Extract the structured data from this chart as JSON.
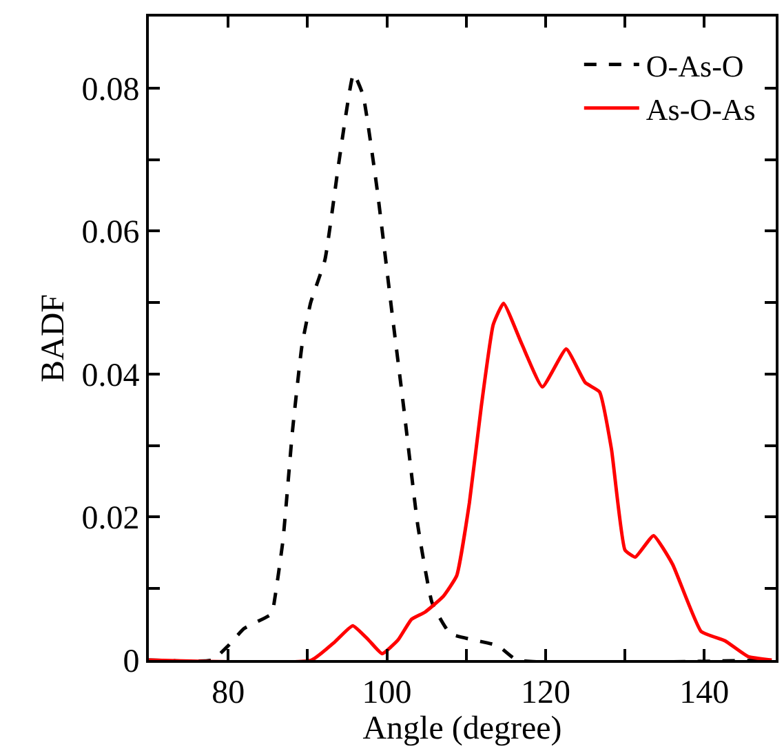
{
  "chart_data": {
    "type": "line",
    "xlabel": "Angle (degree)",
    "ylabel": "BADF",
    "xlim": [
      70,
      149
    ],
    "ylim": [
      0,
      0.09
    ],
    "xticks": [
      80,
      {
        "value": 90,
        "label": null
      },
      100,
      {
        "value": 110,
        "label": null
      },
      120,
      {
        "value": 130,
        "label": null
      },
      140
    ],
    "yticks": [
      0,
      {
        "value": 0.01,
        "label": null
      },
      0.02,
      {
        "value": 0.03,
        "label": null
      },
      0.04,
      {
        "value": 0.05,
        "label": null
      },
      0.06,
      {
        "value": 0.07,
        "label": null
      },
      0.08
    ],
    "legend": "top right",
    "marker": "none",
    "series": [
      {
        "name": "O-As-O",
        "color": "#000000",
        "line_style": "dashed",
        "x": [
          70,
          78,
          80,
          82,
          85.4,
          85.7,
          86.9,
          88.1,
          89.3,
          90.4,
          92.2,
          94.0,
          95.8,
          97.0,
          98.8,
          100.6,
          102.1,
          103.9,
          105.7,
          108.0,
          114.0,
          116.4,
          148.5
        ],
        "values": [
          0,
          0,
          0.002,
          0.0044,
          0.0064,
          0.0074,
          0.0167,
          0.032,
          0.044,
          0.05,
          0.056,
          0.07,
          0.082,
          0.079,
          0.0656,
          0.049,
          0.0355,
          0.0188,
          0.008,
          0.0037,
          0.002,
          0,
          0
        ]
      },
      {
        "name": "As-O-As",
        "color": "#ff0000",
        "line_style": "solid",
        "x": [
          70,
          90.5,
          93.4,
          95.7,
          97.7,
          99.4,
          101.4,
          103.1,
          104.8,
          107.1,
          108.8,
          110.4,
          111.9,
          113.4,
          114.7,
          117.0,
          119.6,
          122.6,
          125.0,
          126.8,
          128.3,
          130.0,
          131.3,
          133.6,
          136.0,
          139.6,
          142.6,
          145.5,
          148.5
        ],
        "values": [
          0,
          0,
          0.0025,
          0.0048,
          0.0028,
          0.0009,
          0.0028,
          0.0057,
          0.0067,
          0.0089,
          0.0118,
          0.022,
          0.0355,
          0.0469,
          0.0499,
          0.0442,
          0.0382,
          0.0435,
          0.0388,
          0.0375,
          0.0295,
          0.0154,
          0.0144,
          0.0174,
          0.0134,
          0.004,
          0.0027,
          0.0005,
          0
        ]
      }
    ]
  }
}
